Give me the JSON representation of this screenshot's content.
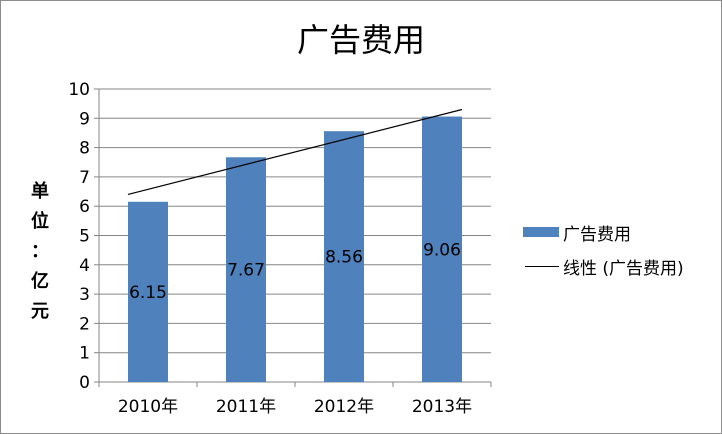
{
  "chart_data": {
    "type": "bar",
    "title": "广告费用",
    "ylabel": "单位：亿元",
    "xlabel": "",
    "categories": [
      "2010年",
      "2011年",
      "2012年",
      "2013年"
    ],
    "series": [
      {
        "name": "广告费用",
        "values": [
          6.15,
          7.67,
          8.56,
          9.06
        ],
        "color": "#4f81bd"
      }
    ],
    "data_labels": [
      "6.15",
      "7.67",
      "8.56",
      "9.06"
    ],
    "trendline": {
      "name": "线性 (广告费用)",
      "type": "linear",
      "start": 6.4,
      "end": 9.3,
      "color": "#000000"
    },
    "ylim": [
      0,
      10
    ],
    "yticks": [
      0,
      1,
      2,
      3,
      4,
      5,
      6,
      7,
      8,
      9,
      10
    ],
    "grid": true,
    "legend_position": "right"
  }
}
